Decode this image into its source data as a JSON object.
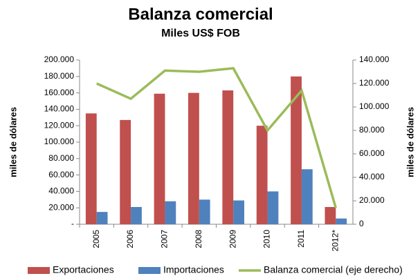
{
  "chart_data": {
    "type": "bar",
    "title": "Balanza comercial",
    "subtitle": "Miles US$ FOB",
    "ylabel": "miles de dólares",
    "y2label": "miles de dólares",
    "categories": [
      "2005",
      "2006",
      "2007",
      "2008",
      "2009",
      "2010",
      "2011",
      "2012*"
    ],
    "series": [
      {
        "name": "Exportaciones",
        "color": "#c0504d",
        "type": "bar",
        "values": [
          135000,
          127000,
          159000,
          160000,
          163000,
          120000,
          180000,
          21000
        ]
      },
      {
        "name": "Importaciones",
        "color": "#4f81bd",
        "type": "bar",
        "values": [
          15000,
          21000,
          28000,
          30000,
          29000,
          40000,
          67000,
          7000
        ]
      },
      {
        "name": "Balanza comercial (eje derecho)",
        "color": "#9bbb59",
        "type": "line",
        "axis": "y2",
        "values": [
          120000,
          107000,
          131000,
          130000,
          133000,
          80000,
          114000,
          14000
        ]
      }
    ],
    "ylim": [
      0,
      200000
    ],
    "yticks": [
      {
        "value": 0,
        "label": "-"
      },
      {
        "value": 20000,
        "label": "20.000"
      },
      {
        "value": 40000,
        "label": "40.000"
      },
      {
        "value": 60000,
        "label": "60.000"
      },
      {
        "value": 80000,
        "label": "80.000"
      },
      {
        "value": 100000,
        "label": "100.000"
      },
      {
        "value": 120000,
        "label": "120.000"
      },
      {
        "value": 140000,
        "label": "140.000"
      },
      {
        "value": 160000,
        "label": "160.000"
      },
      {
        "value": 180000,
        "label": "180.000"
      },
      {
        "value": 200000,
        "label": "200.000"
      }
    ],
    "y2lim": [
      0,
      140000
    ],
    "y2ticks": [
      0,
      {
        "value": 20000,
        "label": "20.000"
      },
      {
        "value": 40000,
        "label": "40.000"
      },
      {
        "value": 60000,
        "label": "60.000"
      },
      {
        "value": 80000,
        "label": "80.000"
      },
      {
        "value": 100000,
        "label": "100.000"
      },
      {
        "value": 120000,
        "label": "120.000"
      },
      {
        "value": 140000,
        "label": "140.000"
      }
    ],
    "legend": "bottom"
  }
}
